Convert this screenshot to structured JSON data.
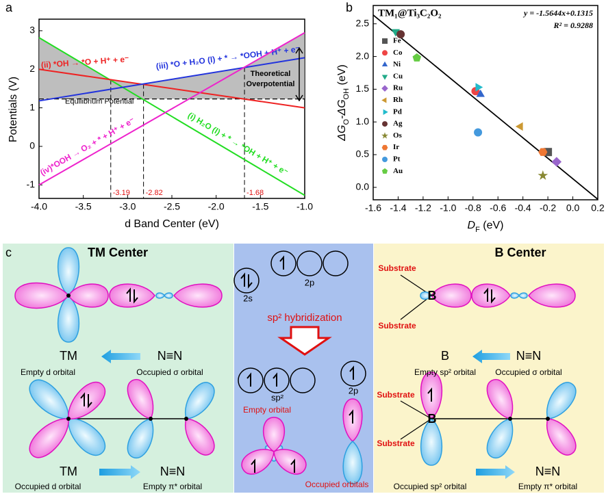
{
  "chart_data": [
    {
      "type": "line",
      "panel_label": "a",
      "x_label": "d Band Center (eV)",
      "y_label": "Potentials (V)",
      "x": [
        -4,
        -1
      ],
      "series": [
        {
          "name": "(i) H₂O (l) + * → *OH + H⁺ + e⁻",
          "color": "#22dd22",
          "values": [
            2.82,
            -1.27
          ]
        },
        {
          "name": "(ii) *OH → *O + H⁺ + e⁻",
          "color": "#ee2222",
          "values": [
            2.0,
            1.0
          ]
        },
        {
          "name": "(iii) *O + H₂O (l) + * → *OOH + H⁺ + e⁻",
          "color": "#2233dd",
          "values": [
            1.18,
            2.3
          ]
        },
        {
          "name": "(iv)*OOH → O₂ + * + H⁺ + e⁻",
          "color": "#ee22cc",
          "values": [
            -1.0,
            2.95
          ]
        }
      ],
      "equilibrium_potential": 1.23,
      "equilibrium_label": "Equilibrium Potential",
      "overpotential_label": [
        "Theoretical",
        "Overpotential"
      ],
      "vlines": [
        -3.19,
        -2.82,
        -1.68
      ],
      "xlim": [
        -4,
        -1
      ],
      "xticks": [
        {
          "value": -4,
          "label": "-4.0"
        },
        -3.5,
        {
          "value": -3,
          "label": "-3.0"
        },
        -2.5,
        {
          "value": -2,
          "label": "-2.0"
        },
        -1.5,
        {
          "value": -1,
          "label": "-1.0"
        }
      ],
      "ylim": [
        -1.35,
        3.3
      ],
      "yticks": [
        -1,
        0,
        1,
        2,
        3
      ]
    },
    {
      "type": "scatter",
      "panel_label": "b",
      "title": "TM₁@Ti₃C₂O₂",
      "x_label": [
        "D",
        "F",
        " (eV)"
      ],
      "y_label": [
        "ΔG",
        "O",
        "-ΔG",
        "OH",
        " (eV)"
      ],
      "fit_label": "y = -1.5644x+0.1315",
      "r2_label": "R² = 0.9288",
      "fit": {
        "slope": -1.5644,
        "intercept": 0.1315
      },
      "series": [
        {
          "name": "Fe",
          "color": "#555555",
          "marker": "square",
          "x": [
            -0.2
          ],
          "values": [
            0.54
          ]
        },
        {
          "name": "Co",
          "color": "#ee4444",
          "marker": "circle",
          "x": [
            -0.78
          ],
          "values": [
            1.47
          ]
        },
        {
          "name": "Ni",
          "color": "#3366cc",
          "marker": "triangle-up",
          "x": [
            -0.74
          ],
          "values": [
            1.42
          ]
        },
        {
          "name": "Cu",
          "color": "#22aa88",
          "marker": "triangle-down",
          "x": [
            -1.42
          ],
          "values": [
            2.38
          ]
        },
        {
          "name": "Ru",
          "color": "#9966cc",
          "marker": "diamond",
          "x": [
            -0.13
          ],
          "values": [
            0.39
          ]
        },
        {
          "name": "Rh",
          "color": "#cc9933",
          "marker": "triangle-left",
          "x": [
            -0.42
          ],
          "values": [
            0.93
          ]
        },
        {
          "name": "Pd",
          "color": "#22bbcc",
          "marker": "triangle-right",
          "x": [
            -0.76
          ],
          "values": [
            1.53
          ]
        },
        {
          "name": "Ag",
          "color": "#663333",
          "marker": "circle",
          "x": [
            -1.38
          ],
          "values": [
            2.34
          ]
        },
        {
          "name": "Os",
          "color": "#888833",
          "marker": "star",
          "x": [
            -0.24
          ],
          "values": [
            0.18
          ]
        },
        {
          "name": "Ir",
          "color": "#ee7733",
          "marker": "hexagon",
          "x": [
            -0.24
          ],
          "values": [
            0.54
          ]
        },
        {
          "name": "Pt",
          "color": "#4499dd",
          "marker": "circle",
          "x": [
            -0.76
          ],
          "values": [
            0.84
          ]
        },
        {
          "name": "Au",
          "color": "#66cc44",
          "marker": "pentagon",
          "x": [
            -1.25
          ],
          "values": [
            1.98
          ]
        }
      ],
      "xlim": [
        -1.6,
        0.2
      ],
      "xticks": [
        -1.6,
        -1.4,
        -1.2,
        {
          "value": -1,
          "label": "-1.0"
        },
        -0.8,
        -0.6,
        -0.4,
        -0.2,
        {
          "value": 0,
          "label": "0.0"
        },
        0.2
      ],
      "ylim": [
        -0.19,
        2.78
      ],
      "yticks": [
        {
          "value": 0,
          "label": "0.0"
        },
        0.5,
        {
          "value": 1,
          "label": "1.0"
        },
        1.5,
        {
          "value": 2,
          "label": "2.0"
        },
        2.5
      ]
    }
  ],
  "diagram": {
    "panel_label": "c",
    "tm_center": {
      "title": "TM Center",
      "sigma": {
        "left": "TM",
        "right": "N≡N",
        "left_caption": "Empty d orbital",
        "right_caption": "Occupied σ orbital"
      },
      "pi": {
        "left": "TM",
        "right": "N≡N",
        "left_caption": "Occupied d orbital",
        "right_caption": "Empty π* orbital"
      }
    },
    "hybridization": {
      "s_label": "2s",
      "p_label": "2p",
      "process": "sp² hybridization",
      "sp2_label": "sp²",
      "p_label_after": "2p",
      "empty_label": "Empty orbital",
      "occupied_label": "Occupied orbitals"
    },
    "b_center": {
      "title": "B Center",
      "substrate_labels": [
        "Substrate",
        "Substrate",
        "Substrate",
        "Substrate"
      ],
      "atom_labels": [
        "B",
        "B"
      ],
      "sigma": {
        "left": "B",
        "right": "N≡N",
        "left_caption": "Empty sp² orbital",
        "right_caption": "Occupied σ orbital"
      },
      "pi": {
        "left": "B",
        "right": "N≡N",
        "left_caption": "Occupied sp² orbital",
        "right_caption": "Empty π* orbital"
      }
    }
  }
}
